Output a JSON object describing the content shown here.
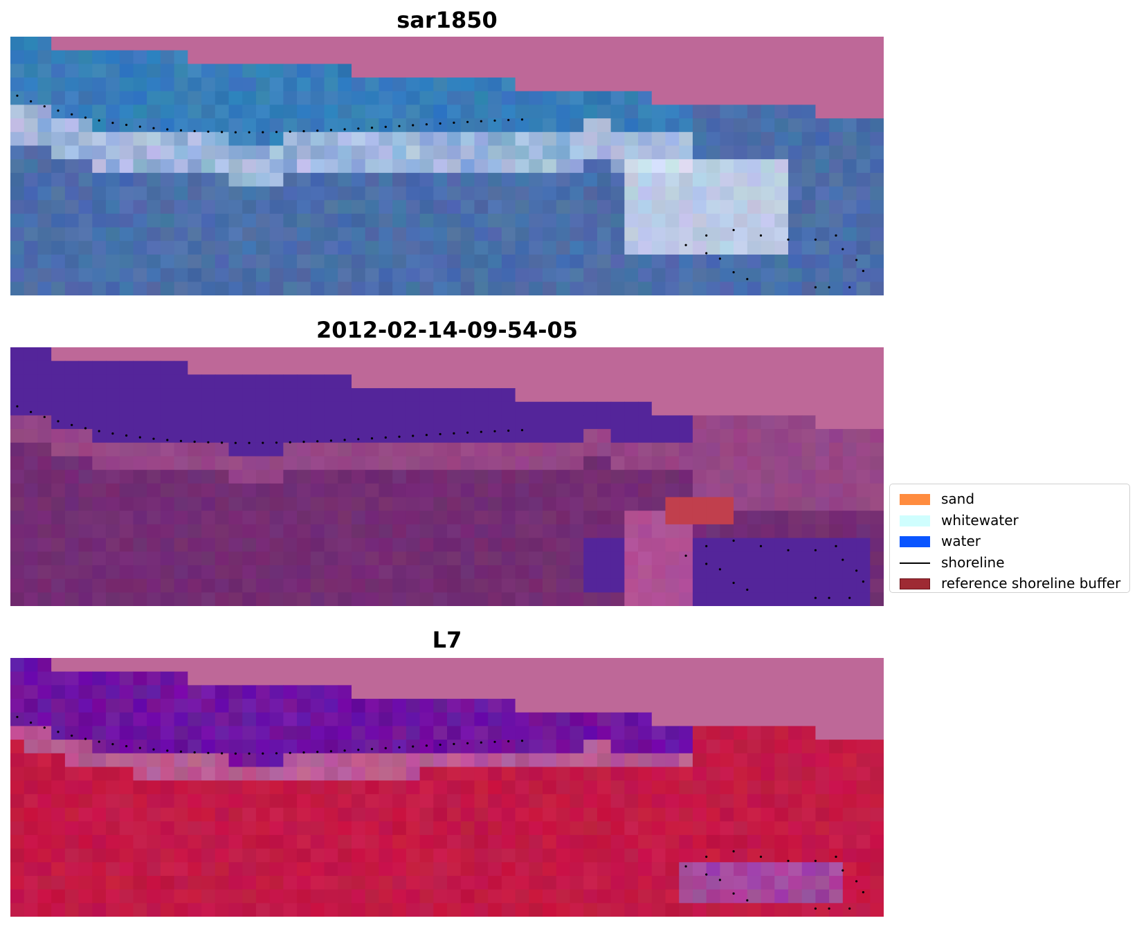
{
  "panels": [
    {
      "title": "sar1850",
      "kind": "rgb"
    },
    {
      "title": "2012-02-14-09-54-05",
      "kind": "classified"
    },
    {
      "title": "L7",
      "kind": "index"
    }
  ],
  "legend": {
    "items": [
      {
        "label": "sand",
        "color": "#ff8c3f",
        "type": "patch"
      },
      {
        "label": "whitewater",
        "color": "#cffefe",
        "type": "patch"
      },
      {
        "label": "water",
        "color": "#0a55ff",
        "type": "patch"
      },
      {
        "label": "shoreline",
        "color": "#000000",
        "type": "line"
      },
      {
        "label": "reference shoreline buffer",
        "color": "#9e2a33",
        "type": "patch",
        "edge": "#6a1219"
      }
    ]
  },
  "colors": {
    "nodata": "#be6898",
    "water_class": "#54259a",
    "buffer_class": "#c13f4d",
    "shoreline": "#000000"
  }
}
